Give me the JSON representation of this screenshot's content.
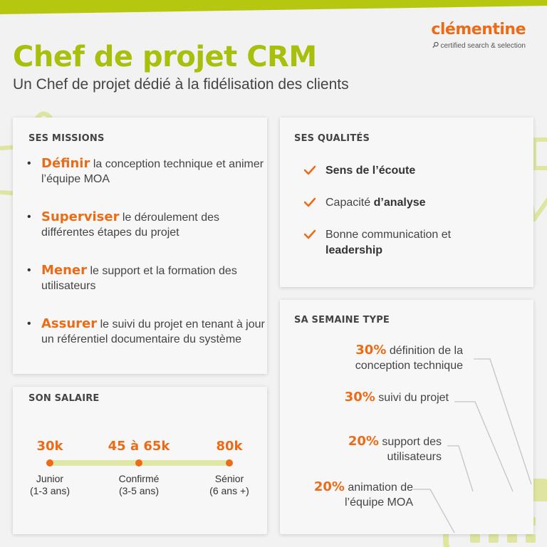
{
  "colors": {
    "accent_green": "#a8c00c",
    "accent_orange": "#ec6b17",
    "deco_green": "#dfe5a0"
  },
  "brand": {
    "name": "clémentine",
    "tagline": "certified search & selection"
  },
  "header": {
    "title": "Chef de projet CRM",
    "subtitle": "Un Chef de projet dédié à la fidélisation des clients"
  },
  "missions": {
    "title": "SES MISSIONS",
    "items": [
      {
        "keyword": "Définir",
        "text": "la conception technique et animer l’équipe MOA"
      },
      {
        "keyword": "Superviser",
        "text": "le déroulement des différentes étapes du projet"
      },
      {
        "keyword": "Mener",
        "text": "le support et la formation des utilisateurs"
      },
      {
        "keyword": "Assurer",
        "text": "le suivi du projet en tenant à jour un référentiel documentaire du système"
      }
    ]
  },
  "qualities": {
    "title": "SES QUALITÉS",
    "items": [
      {
        "before": "",
        "bold": "Sens de l’écoute",
        "after": ""
      },
      {
        "before": "Capacité ",
        "bold": "d’analyse",
        "after": ""
      },
      {
        "before": "Bonne communication et ",
        "bold": "leadership",
        "after": ""
      }
    ]
  },
  "salary": {
    "title": "SON SALAIRE",
    "levels": [
      {
        "amount": "30k",
        "label": "Junior",
        "years": "(1-3 ans)"
      },
      {
        "amount": "45 à 65k",
        "label": "Confirmé",
        "years": "(3-5 ans)"
      },
      {
        "amount": "80k",
        "label": "Sénior",
        "years": "(6 ans +)"
      }
    ]
  },
  "week": {
    "title": "SA SEMAINE TYPE",
    "items": [
      {
        "pct": "30%",
        "line1": "définition de la",
        "line2": "conception technique"
      },
      {
        "pct": "30%",
        "line1": "suivi du projet",
        "line2": ""
      },
      {
        "pct": "20%",
        "line1": "support des",
        "line2": "utilisateurs"
      },
      {
        "pct": "20%",
        "line1": "animation de",
        "line2": "l’équipe MOA"
      }
    ]
  }
}
